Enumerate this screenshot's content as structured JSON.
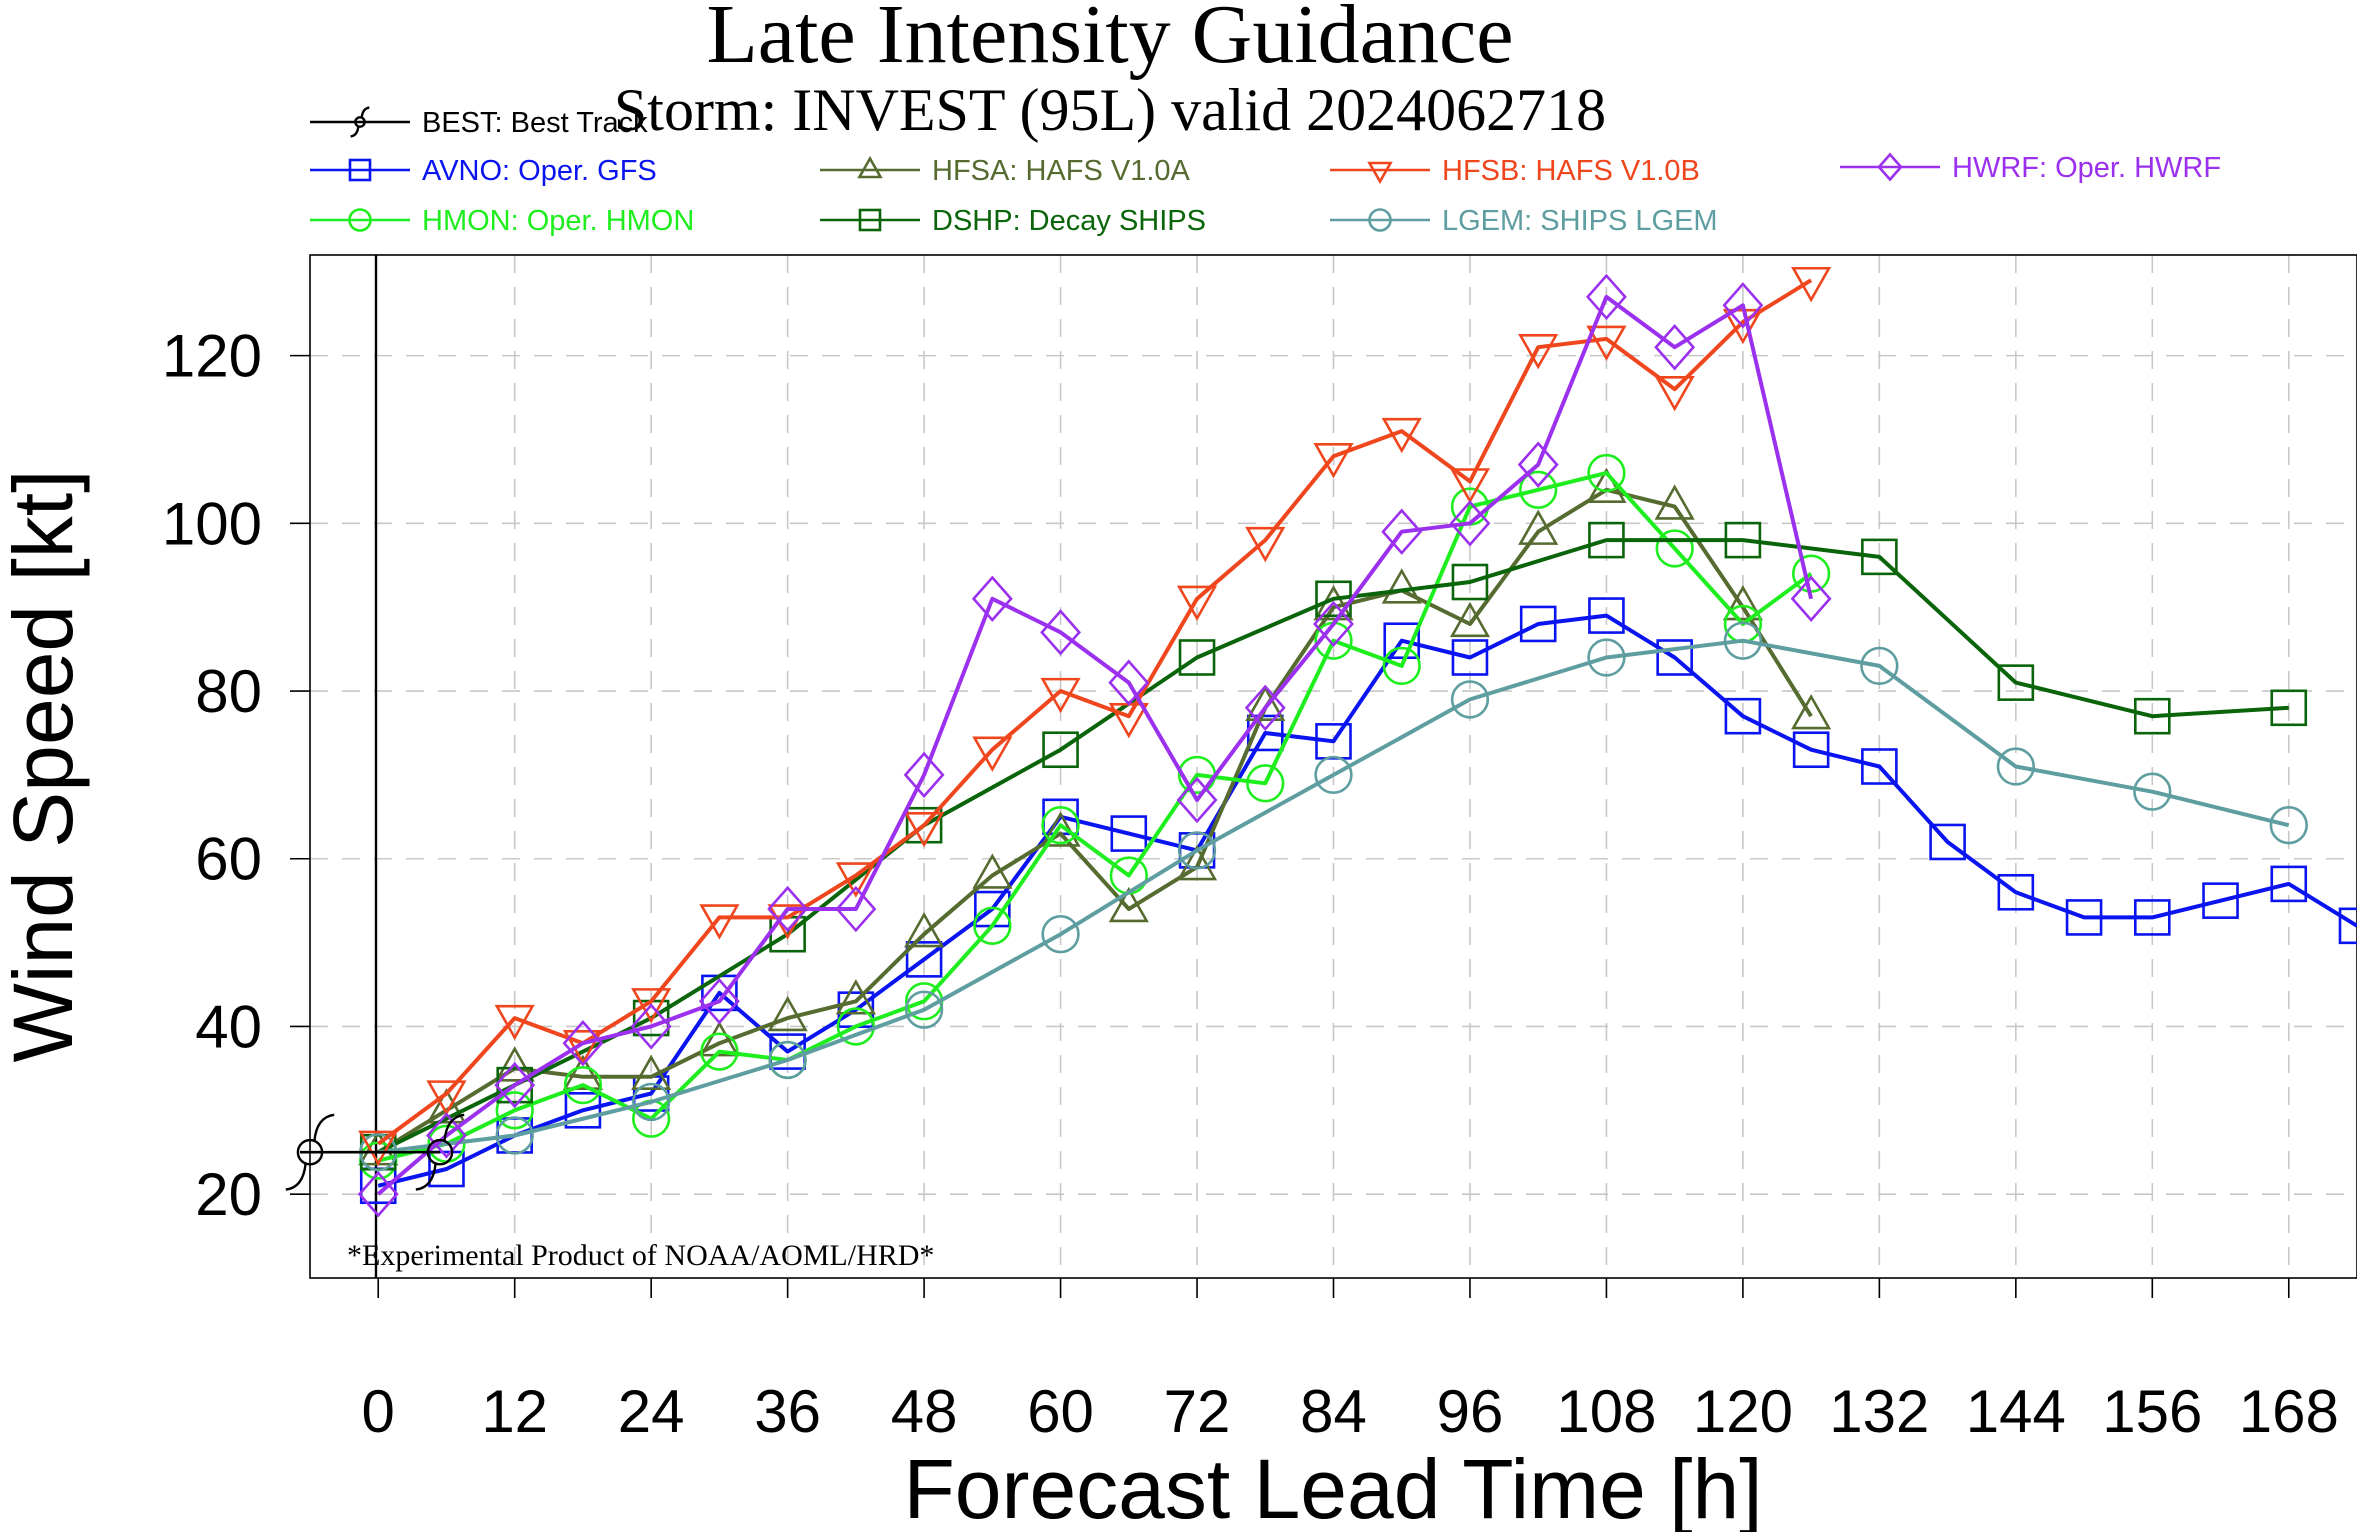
{
  "chart_data": {
    "type": "line",
    "title": "Late Intensity Guidance",
    "subtitle": "Storm: INVEST (95L) valid 2024062718",
    "xlabel": "Forecast Lead Time [h]",
    "ylabel": "Wind Speed [kt]",
    "xlim": [
      -6,
      174
    ],
    "ylim": [
      10,
      132
    ],
    "xticks": [
      0,
      12,
      24,
      36,
      48,
      60,
      72,
      84,
      96,
      108,
      120,
      132,
      144,
      156,
      168
    ],
    "yticks": [
      20,
      40,
      60,
      80,
      100,
      120
    ],
    "grid": true,
    "legend": "top",
    "footnote": "*Experimental Product of NOAA/AOML/HRD*",
    "series": [
      {
        "name": "BEST: Best Track",
        "color": "#000000",
        "marker": "hurricane",
        "x": [
          0
        ],
        "y": [
          25
        ]
      },
      {
        "name": "AVNO: Oper. GFS",
        "color": "#0a14f0",
        "marker": "square",
        "x": [
          0,
          6,
          12,
          18,
          24,
          30,
          36,
          42,
          48,
          54,
          60,
          66,
          72,
          78,
          84,
          90,
          96,
          102,
          108,
          114,
          120,
          126,
          132,
          138,
          144,
          150,
          156,
          162,
          168,
          174
        ],
        "y": [
          21,
          23,
          27,
          30,
          32,
          44,
          37,
          42,
          48,
          54,
          65,
          63,
          61,
          75,
          74,
          86,
          84,
          88,
          89,
          84,
          77,
          73,
          71,
          62,
          56,
          53,
          53,
          55,
          57,
          52
        ]
      },
      {
        "name": "HFSA: HAFS V1.0A",
        "color": "#556b2f",
        "marker": "triangle-up",
        "x": [
          0,
          6,
          12,
          18,
          24,
          30,
          36,
          42,
          48,
          54,
          60,
          66,
          72,
          78,
          84,
          90,
          96,
          102,
          108,
          114,
          120,
          126
        ],
        "y": [
          25,
          30,
          35,
          34,
          34,
          38,
          41,
          43,
          51,
          58,
          63,
          54,
          59,
          78,
          90,
          92,
          88,
          99,
          104,
          102,
          90,
          77
        ]
      },
      {
        "name": "HFSB: HAFS V1.0B",
        "color": "#f0461e",
        "marker": "triangle-down",
        "x": [
          0,
          6,
          12,
          18,
          24,
          30,
          36,
          42,
          48,
          54,
          60,
          66,
          72,
          78,
          84,
          90,
          96,
          102,
          108,
          114,
          120,
          126
        ],
        "y": [
          26,
          32,
          41,
          38,
          43,
          53,
          53,
          58,
          64,
          73,
          80,
          77,
          91,
          98,
          108,
          111,
          105,
          121,
          122,
          116,
          124,
          129
        ]
      },
      {
        "name": "HWRF: Oper. HWRF",
        "color": "#9b30ee",
        "marker": "diamond",
        "x": [
          0,
          6,
          12,
          18,
          24,
          30,
          36,
          42,
          48,
          54,
          60,
          66,
          72,
          78,
          84,
          90,
          96,
          102,
          108,
          114,
          120,
          126
        ],
        "y": [
          20,
          27,
          33,
          38,
          40,
          43,
          54,
          54,
          70,
          91,
          87,
          81,
          67,
          78,
          88,
          99,
          100,
          107,
          127,
          121,
          126,
          91
        ]
      },
      {
        "name": "HMON: Oper. HMON",
        "color": "#1eee1e",
        "marker": "circle",
        "x": [
          0,
          6,
          12,
          18,
          24,
          30,
          36,
          42,
          48,
          54,
          60,
          66,
          72,
          78,
          84,
          90,
          96,
          102,
          108,
          114,
          120,
          126
        ],
        "y": [
          24,
          26,
          30,
          33,
          29,
          37,
          36,
          40,
          43,
          52,
          64,
          58,
          70,
          69,
          86,
          83,
          102,
          104,
          106,
          97,
          88,
          94
        ]
      },
      {
        "name": "DSHP: Decay SHIPS",
        "color": "#0a640a",
        "marker": "square",
        "x": [
          0,
          12,
          24,
          36,
          48,
          60,
          72,
          84,
          96,
          108,
          120,
          132,
          144,
          156,
          168
        ],
        "y": [
          25,
          33,
          41,
          51,
          64,
          73,
          84,
          91,
          93,
          98,
          98,
          96,
          81,
          77,
          78
        ]
      },
      {
        "name": "LGEM: SHIPS LGEM",
        "color": "#5f9ea0",
        "marker": "circle",
        "x": [
          0,
          12,
          24,
          36,
          48,
          60,
          72,
          84,
          96,
          108,
          120,
          132,
          144,
          156,
          168
        ],
        "y": [
          25,
          27,
          31,
          36,
          42,
          51,
          61,
          70,
          79,
          84,
          86,
          83,
          71,
          68,
          64
        ]
      }
    ]
  }
}
